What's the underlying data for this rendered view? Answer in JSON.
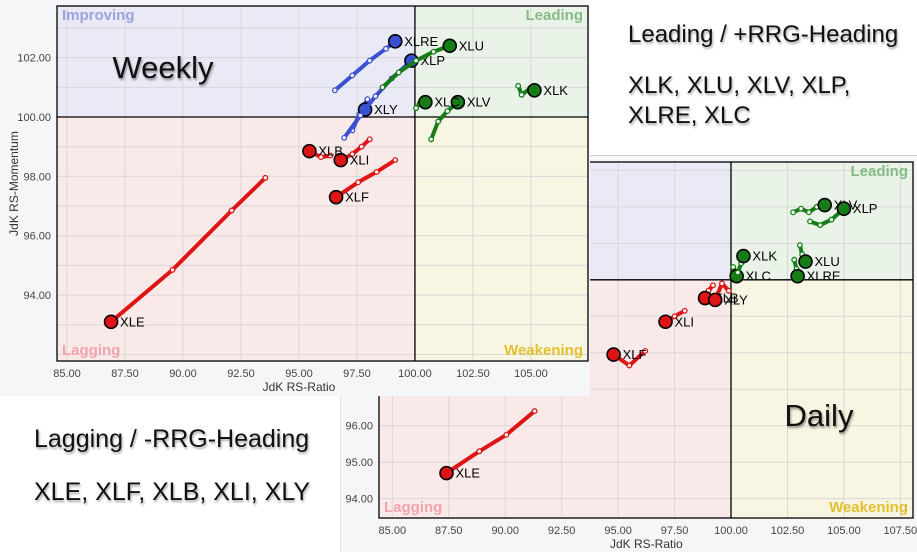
{
  "annotations": {
    "leading": {
      "heading": "Leading / +RRG-Heading",
      "tickers_line1": "XLK, XLU, XLV, XLP,",
      "tickers_line2": "XLRE, XLC"
    },
    "lagging": {
      "heading": "Lagging / -RRG-Heading",
      "tickers_line1": "XLE, XLF, XLB, XLI, XLY"
    }
  },
  "colors": {
    "red": "#df1414",
    "green": "#167c16",
    "blue": "#3a4fd2",
    "improving_bg": "#e9eaf5",
    "leading_bg": "#e9f3e7",
    "lagging_bg": "#f9e9e9",
    "weakening_bg": "#f8f5e3",
    "improving_label": "#9aa3e2",
    "leading_label": "#86bb86",
    "lagging_label": "#f2a3ad",
    "weakening_label": "#e3bf2e",
    "grid": "#d8d8d8",
    "axis": "#000000"
  },
  "chart_data": [
    {
      "id": "weekly",
      "type": "scatter",
      "title": "Weekly",
      "xlabel": "JdK RS-Ratio",
      "ylabel": "JdK RS-Momentum",
      "xlim": [
        84.57,
        107.46
      ],
      "ylim": [
        91.78,
        103.74
      ],
      "xticks": [
        85,
        87.5,
        90,
        92.5,
        95,
        97.5,
        100,
        102.5,
        105
      ],
      "yticks": [
        94,
        96,
        98,
        100,
        102
      ],
      "center": [
        100,
        100
      ],
      "quadrant_labels": {
        "improving": "Improving",
        "leading": "Leading",
        "lagging": "Lagging",
        "weakening": "Weakening"
      },
      "series": [
        {
          "name": "XLE",
          "color": "red",
          "trail": [
            [
              93.55,
              97.95
            ],
            [
              92.1,
              96.85
            ],
            [
              89.55,
              94.85
            ],
            [
              86.9,
              93.1
            ]
          ]
        },
        {
          "name": "XLF",
          "color": "red",
          "trail": [
            [
              99.15,
              98.55
            ],
            [
              98.35,
              98.15
            ],
            [
              97.55,
              97.8
            ],
            [
              96.6,
              97.3
            ]
          ]
        },
        {
          "name": "XLI",
          "color": "red",
          "trail": [
            [
              98.05,
              99.25
            ],
            [
              97.7,
              99.0
            ],
            [
              97.3,
              98.75
            ],
            [
              96.8,
              98.55
            ]
          ]
        },
        {
          "name": "XLB",
          "color": "red",
          "trail": [
            [
              96.35,
              98.7
            ],
            [
              95.95,
              98.65
            ],
            [
              95.45,
              98.85
            ]
          ]
        },
        {
          "name": "XLY",
          "color": "blue",
          "trail": [
            [
              97.3,
              99.55
            ],
            [
              97.6,
              100.1
            ],
            [
              97.95,
              100.6
            ],
            [
              97.85,
              100.25
            ]
          ]
        },
        {
          "name": "XLP",
          "color": "blue",
          "trail": [
            [
              96.95,
              99.3
            ],
            [
              97.65,
              100.05
            ],
            [
              98.3,
              100.7
            ],
            [
              99.0,
              101.3
            ],
            [
              99.85,
              101.9
            ]
          ]
        },
        {
          "name": "XLRE",
          "color": "blue",
          "trail": [
            [
              96.55,
              100.9
            ],
            [
              97.3,
              101.4
            ],
            [
              98.05,
              101.9
            ],
            [
              98.75,
              102.3
            ],
            [
              99.15,
              102.55
            ]
          ]
        },
        {
          "name": "XLU",
          "color": "green",
          "trail": [
            [
              98.6,
              101.0
            ],
            [
              99.3,
              101.5
            ],
            [
              100.05,
              101.9
            ],
            [
              100.8,
              102.2
            ],
            [
              101.5,
              102.4
            ]
          ]
        },
        {
          "name": "XLV",
          "color": "green",
          "trail": [
            [
              100.7,
              99.25
            ],
            [
              101.0,
              99.85
            ],
            [
              101.4,
              100.2
            ],
            [
              101.85,
              100.5
            ]
          ]
        },
        {
          "name": "XLC",
          "color": "green",
          "trail": [
            [
              100.05,
              100.3
            ],
            [
              100.2,
              100.45
            ],
            [
              100.45,
              100.5
            ]
          ]
        },
        {
          "name": "XLK",
          "color": "green",
          "trail": [
            [
              104.45,
              101.05
            ],
            [
              104.6,
              100.75
            ],
            [
              104.95,
              100.95
            ],
            [
              105.15,
              100.9
            ]
          ]
        }
      ]
    },
    {
      "id": "daily",
      "type": "scatter",
      "title": "Daily",
      "xlabel": "JdK RS-Ratio",
      "xlim": [
        84.41,
        108.06
      ],
      "ylim": [
        93.47,
        103.23
      ],
      "xticks": [
        85,
        87.5,
        90,
        92.5,
        95,
        97.5,
        100,
        102.5,
        105,
        107.5
      ],
      "yticks": [
        94,
        95,
        96
      ],
      "center": [
        100,
        100
      ],
      "quadrant_labels": {
        "leading": "Leading",
        "lagging": "Lagging",
        "weakening": "Weakening"
      },
      "series": [
        {
          "name": "XLE",
          "color": "red",
          "trail": [
            [
              91.3,
              96.4
            ],
            [
              90.05,
              95.75
            ],
            [
              88.85,
              95.3
            ],
            [
              87.4,
              94.7
            ]
          ]
        },
        {
          "name": "XLF",
          "color": "red",
          "trail": [
            [
              96.2,
              98.05
            ],
            [
              95.5,
              97.65
            ],
            [
              94.8,
              97.95
            ]
          ]
        },
        {
          "name": "XLI",
          "color": "red",
          "trail": [
            [
              97.95,
              99.15
            ],
            [
              97.5,
              99.0
            ],
            [
              97.1,
              98.85
            ]
          ]
        },
        {
          "name": "XLB",
          "color": "red",
          "trail": [
            [
              99.2,
              99.85
            ],
            [
              99.0,
              99.7
            ],
            [
              98.85,
              99.5
            ]
          ]
        },
        {
          "name": "XLY",
          "color": "red",
          "trail": [
            [
              99.9,
              99.7
            ],
            [
              99.6,
              99.9
            ],
            [
              99.3,
              99.45
            ]
          ]
        },
        {
          "name": "XLC",
          "color": "green",
          "trail": [
            [
              100.1,
              100.35
            ],
            [
              100.25,
              100.1
            ]
          ]
        },
        {
          "name": "XLK",
          "color": "green",
          "trail": [
            [
              100.3,
              100.2
            ],
            [
              100.45,
              100.45
            ],
            [
              100.55,
              100.65
            ]
          ]
        },
        {
          "name": "XLRE",
          "color": "green",
          "trail": [
            [
              102.8,
              100.55
            ],
            [
              102.9,
              100.3
            ],
            [
              102.95,
              100.1
            ]
          ]
        },
        {
          "name": "XLU",
          "color": "green",
          "trail": [
            [
              103.05,
              100.95
            ],
            [
              103.15,
              100.7
            ],
            [
              103.3,
              100.5
            ]
          ]
        },
        {
          "name": "XLV",
          "color": "green",
          "trail": [
            [
              102.75,
              101.85
            ],
            [
              103.1,
              101.95
            ],
            [
              103.45,
              101.85
            ],
            [
              103.8,
              102.0
            ],
            [
              104.15,
              102.05
            ]
          ]
        },
        {
          "name": "XLP",
          "color": "green",
          "trail": [
            [
              103.5,
              101.6
            ],
            [
              103.95,
              101.5
            ],
            [
              104.45,
              101.65
            ],
            [
              105.0,
              101.95
            ]
          ]
        }
      ]
    }
  ]
}
